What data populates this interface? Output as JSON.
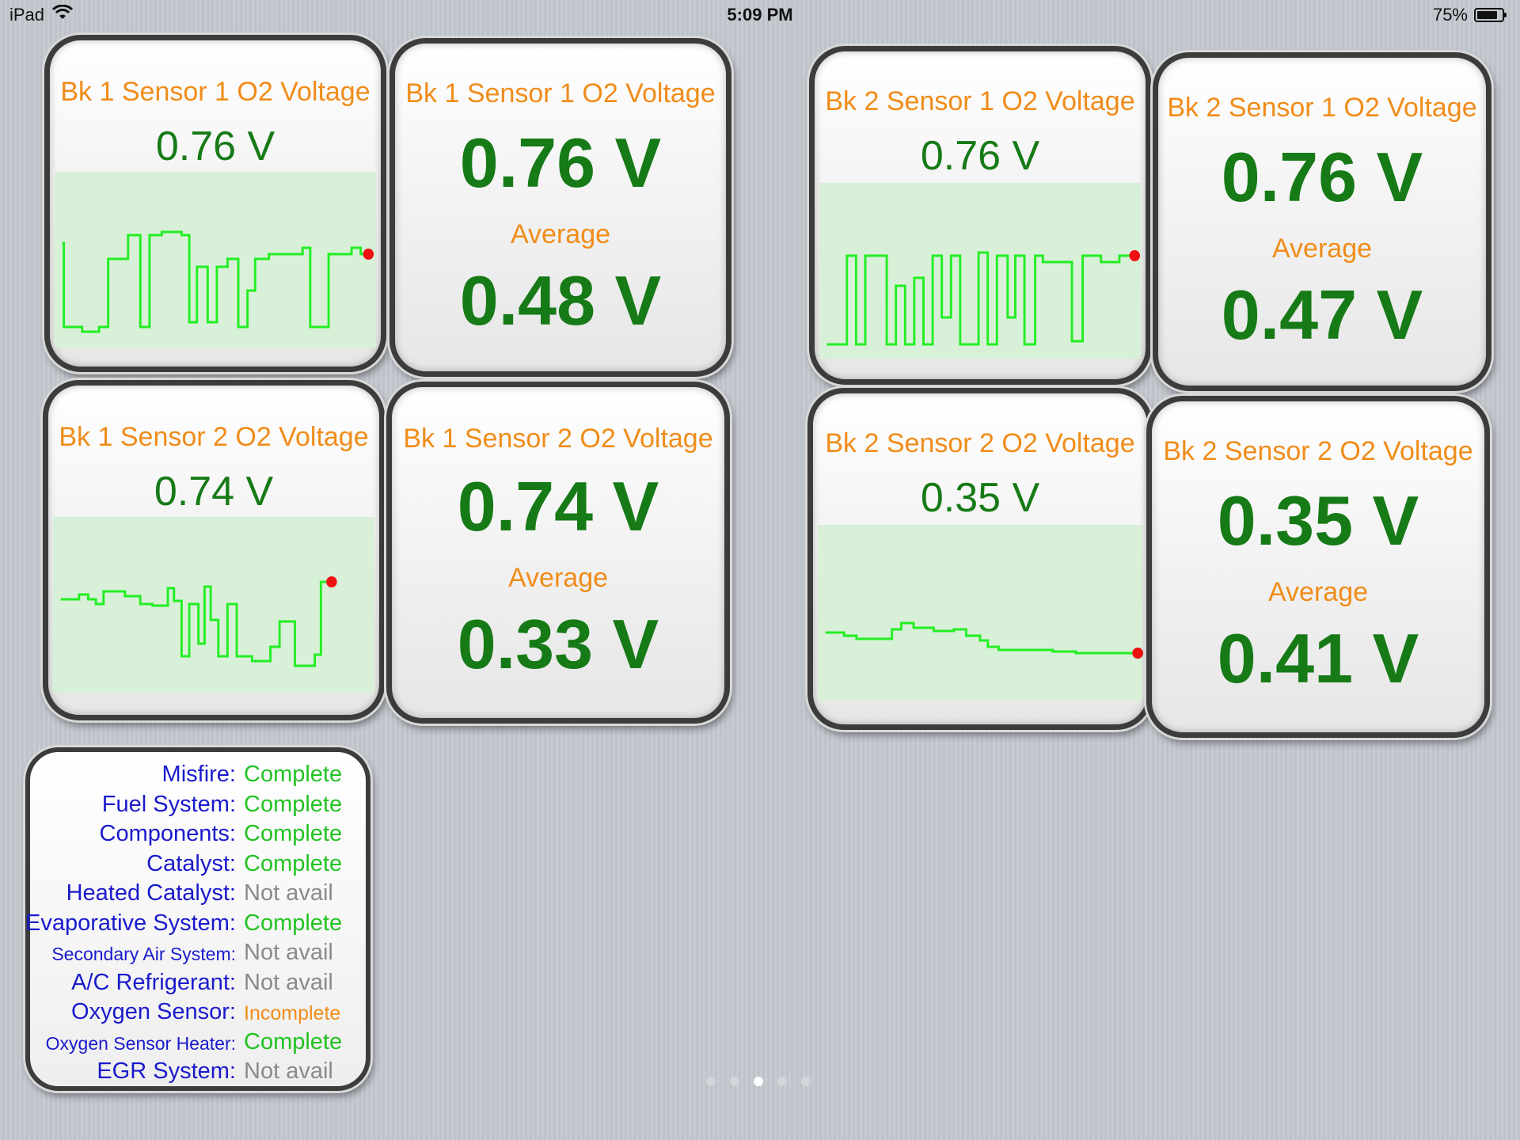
{
  "status_bar": {
    "device": "iPad",
    "time": "5:09 PM",
    "battery": "75%",
    "wifi_icon": "wifi-icon",
    "battery_icon": "battery-icon"
  },
  "colors": {
    "title": "#f08c19",
    "value": "#167a16",
    "graph_line": "#22ee22",
    "graph_bg": "#d8f0d8",
    "marker": "#ee1111",
    "label_blue": "#1a1acc",
    "complete": "#22c322",
    "not_avail": "#8a8a8a",
    "incomplete": "#f08c19"
  },
  "gauges": {
    "b1s1_graph": {
      "title": "Bk 1 Sensor 1 O2 Voltage",
      "value": "0.76 V"
    },
    "b1s1_num": {
      "title": "Bk 1 Sensor 1 O2 Voltage",
      "value": "0.76 V",
      "avg_label": "Average",
      "avg": "0.48 V"
    },
    "b1s2_graph": {
      "title": "Bk 1 Sensor 2 O2 Voltage",
      "value": "0.74 V"
    },
    "b1s2_num": {
      "title": "Bk 1 Sensor 2 O2 Voltage",
      "value": "0.74 V",
      "avg_label": "Average",
      "avg": "0.33 V"
    },
    "b2s1_graph": {
      "title": "Bk 2 Sensor 1 O2 Voltage",
      "value": "0.76 V"
    },
    "b2s1_num": {
      "title": "Bk 2 Sensor 1 O2 Voltage",
      "value": "0.76 V",
      "avg_label": "Average",
      "avg": "0.47 V"
    },
    "b2s2_graph": {
      "title": "Bk 2 Sensor 2 O2 Voltage",
      "value": "0.35 V"
    },
    "b2s2_num": {
      "title": "Bk 2 Sensor 2 O2 Voltage",
      "value": "0.35 V",
      "avg_label": "Average",
      "avg": "0.41 V"
    }
  },
  "monitors": [
    {
      "label": "Misfire:",
      "value": "Complete",
      "status": "complete"
    },
    {
      "label": "Fuel System:",
      "value": "Complete",
      "status": "complete"
    },
    {
      "label": "Components:",
      "value": "Complete",
      "status": "complete"
    },
    {
      "label": "Catalyst:",
      "value": "Complete",
      "status": "complete"
    },
    {
      "label": "Heated Catalyst:",
      "value": "Not avail",
      "status": "na"
    },
    {
      "label": "Evaporative System:",
      "value": "Complete",
      "status": "complete"
    },
    {
      "label": "Secondary Air System:",
      "value": "Not avail",
      "status": "na"
    },
    {
      "label": "A/C Refrigerant:",
      "value": "Not avail",
      "status": "na"
    },
    {
      "label": "Oxygen Sensor:",
      "value": "Incomplete",
      "status": "incomplete"
    },
    {
      "label": "Oxygen Sensor Heater:",
      "value": "Complete",
      "status": "complete"
    },
    {
      "label": "EGR System:",
      "value": "Not avail",
      "status": "na"
    }
  ],
  "page_indicator": {
    "count": 5,
    "current": 3
  }
}
